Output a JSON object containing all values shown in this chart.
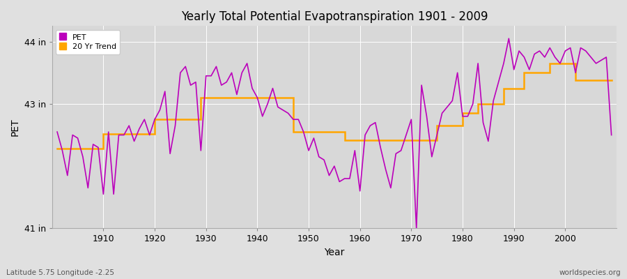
{
  "title": "Yearly Total Potential Evapotranspiration 1901 - 2009",
  "ylabel": "PET",
  "xlabel": "Year",
  "footnote_left": "Latitude 5.75 Longitude -2.25",
  "footnote_right": "worldspecies.org",
  "ylim": [
    41.0,
    44.25
  ],
  "yticks": [
    41.0,
    43.0,
    44.0
  ],
  "ytick_labels": [
    "41 in",
    "43 in",
    "44 in"
  ],
  "background_color": "#e0e0e0",
  "plot_bg_color": "#d8d8d8",
  "grid_color": "#ffffff",
  "pet_color": "#bb00bb",
  "trend_color": "#ffa500",
  "pet_linewidth": 1.2,
  "trend_linewidth": 1.8,
  "years": [
    1901,
    1902,
    1903,
    1904,
    1905,
    1906,
    1907,
    1908,
    1909,
    1910,
    1911,
    1912,
    1913,
    1914,
    1915,
    1916,
    1917,
    1918,
    1919,
    1920,
    1921,
    1922,
    1923,
    1924,
    1925,
    1926,
    1927,
    1928,
    1929,
    1930,
    1931,
    1932,
    1933,
    1934,
    1935,
    1936,
    1937,
    1938,
    1939,
    1940,
    1941,
    1942,
    1943,
    1944,
    1945,
    1946,
    1947,
    1948,
    1949,
    1950,
    1951,
    1952,
    1953,
    1954,
    1955,
    1956,
    1957,
    1958,
    1959,
    1960,
    1961,
    1962,
    1963,
    1964,
    1965,
    1966,
    1967,
    1968,
    1969,
    1970,
    1971,
    1972,
    1973,
    1974,
    1975,
    1976,
    1977,
    1978,
    1979,
    1980,
    1981,
    1982,
    1983,
    1984,
    1985,
    1986,
    1987,
    1988,
    1989,
    1990,
    1991,
    1992,
    1993,
    1994,
    1995,
    1996,
    1997,
    1998,
    1999,
    2000,
    2001,
    2002,
    2003,
    2004,
    2005,
    2006,
    2007,
    2008,
    2009
  ],
  "pet_values": [
    42.55,
    42.25,
    41.85,
    42.5,
    42.45,
    42.15,
    41.65,
    42.35,
    42.3,
    41.55,
    42.55,
    41.55,
    42.5,
    42.5,
    42.65,
    42.4,
    42.6,
    42.75,
    42.5,
    42.75,
    42.9,
    43.2,
    42.2,
    42.65,
    43.5,
    43.6,
    43.3,
    43.35,
    42.25,
    43.45,
    43.45,
    43.6,
    43.3,
    43.35,
    43.5,
    43.15,
    43.5,
    43.65,
    43.25,
    43.1,
    42.8,
    43.0,
    43.25,
    42.95,
    42.9,
    42.85,
    42.75,
    42.75,
    42.55,
    42.25,
    42.45,
    42.15,
    42.1,
    41.85,
    42.0,
    41.75,
    41.8,
    41.8,
    42.25,
    41.6,
    42.5,
    42.65,
    42.7,
    42.3,
    41.95,
    41.65,
    42.2,
    42.25,
    42.5,
    42.75,
    41.0,
    43.3,
    42.8,
    42.15,
    42.5,
    42.85,
    42.95,
    43.05,
    43.5,
    42.8,
    42.8,
    43.0,
    43.65,
    42.7,
    42.4,
    43.05,
    43.35,
    43.65,
    44.05,
    43.55,
    43.85,
    43.75,
    43.55,
    43.8,
    43.85,
    43.75,
    43.9,
    43.75,
    43.65,
    43.85,
    43.9,
    43.5,
    43.9,
    43.85,
    43.75,
    43.65,
    43.7,
    43.75,
    42.5
  ],
  "trend_x": [
    1901,
    1910,
    1910,
    1920,
    1920,
    1929,
    1929,
    1938,
    1938,
    1947,
    1947,
    1957,
    1957,
    1966,
    1966,
    1975,
    1975,
    1980,
    1980,
    1983,
    1983,
    1988,
    1988,
    1992,
    1992,
    1997,
    1997,
    2002,
    2002,
    2009
  ],
  "trend_y": [
    42.28,
    42.28,
    42.52,
    42.52,
    42.75,
    42.75,
    43.1,
    43.1,
    43.1,
    43.1,
    42.55,
    42.55,
    42.42,
    42.42,
    42.42,
    42.42,
    42.65,
    42.65,
    42.85,
    42.85,
    43.0,
    43.0,
    43.25,
    43.25,
    43.5,
    43.5,
    43.65,
    43.65,
    43.38,
    43.38
  ]
}
